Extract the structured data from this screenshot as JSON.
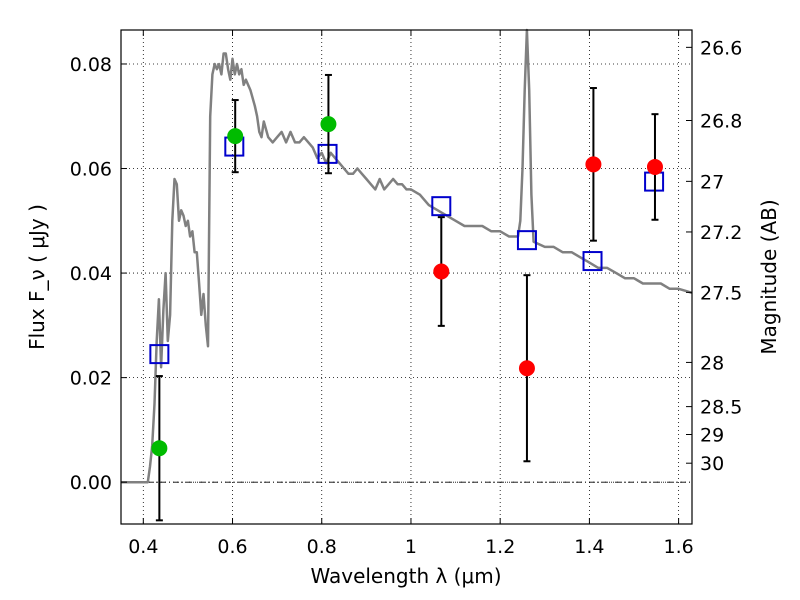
{
  "chart_data": {
    "type": "scatter",
    "xlabel": "Wavelength  λ (μm)",
    "ylabel": "Flux  F_ν  ( μJy )",
    "ylabel_right": "Magnitude (AB)",
    "xlim": [
      0.35,
      1.63
    ],
    "ylim": [
      -0.008,
      0.0865
    ],
    "x_ticks": [
      {
        "value": 0.4,
        "label": "0.4"
      },
      {
        "value": 0.6,
        "label": "0.6"
      },
      {
        "value": 0.8,
        "label": "0.8"
      },
      {
        "value": 1.0,
        "label": "1"
      },
      {
        "value": 1.2,
        "label": "1.2"
      },
      {
        "value": 1.4,
        "label": "1.4"
      },
      {
        "value": 1.6,
        "label": "1.6"
      }
    ],
    "y_ticks": [
      {
        "value": 0.0,
        "label": "0.00"
      },
      {
        "value": 0.02,
        "label": "0.02"
      },
      {
        "value": 0.04,
        "label": "0.04"
      },
      {
        "value": 0.06,
        "label": "0.06"
      },
      {
        "value": 0.08,
        "label": "0.08"
      }
    ],
    "magnitude_ticks": [
      {
        "value": 26.6,
        "label": "26.6"
      },
      {
        "value": 26.8,
        "label": "26.8"
      },
      {
        "value": 27.0,
        "label": "27"
      },
      {
        "value": 27.2,
        "label": "27.2"
      },
      {
        "value": 27.5,
        "label": "27.5"
      },
      {
        "value": 28.0,
        "label": "28"
      },
      {
        "value": 28.5,
        "label": "28.5"
      },
      {
        "value": 29.0,
        "label": "29"
      },
      {
        "value": 30.0,
        "label": "30"
      }
    ],
    "grid": true,
    "zero_line": true,
    "series": [
      {
        "marker": "line",
        "color": "#808080",
        "points": [
          [
            0.35,
            0.0
          ],
          [
            0.41,
            0.0
          ],
          [
            0.415,
            0.003
          ],
          [
            0.42,
            0.007
          ],
          [
            0.425,
            0.015
          ],
          [
            0.43,
            0.027
          ],
          [
            0.435,
            0.035
          ],
          [
            0.44,
            0.022
          ],
          [
            0.445,
            0.033
          ],
          [
            0.45,
            0.04
          ],
          [
            0.455,
            0.027
          ],
          [
            0.46,
            0.032
          ],
          [
            0.465,
            0.05
          ],
          [
            0.47,
            0.058
          ],
          [
            0.475,
            0.057
          ],
          [
            0.48,
            0.05
          ],
          [
            0.485,
            0.052
          ],
          [
            0.49,
            0.051
          ],
          [
            0.495,
            0.049
          ],
          [
            0.5,
            0.05
          ],
          [
            0.505,
            0.047
          ],
          [
            0.51,
            0.048
          ],
          [
            0.515,
            0.044
          ],
          [
            0.52,
            0.044
          ],
          [
            0.525,
            0.038
          ],
          [
            0.53,
            0.032
          ],
          [
            0.535,
            0.036
          ],
          [
            0.54,
            0.03
          ],
          [
            0.545,
            0.026
          ],
          [
            0.55,
            0.07
          ],
          [
            0.555,
            0.078
          ],
          [
            0.56,
            0.08
          ],
          [
            0.565,
            0.079
          ],
          [
            0.57,
            0.08
          ],
          [
            0.575,
            0.078
          ],
          [
            0.58,
            0.082
          ],
          [
            0.585,
            0.082
          ],
          [
            0.59,
            0.079
          ],
          [
            0.595,
            0.077
          ],
          [
            0.6,
            0.081
          ],
          [
            0.605,
            0.078
          ],
          [
            0.61,
            0.08
          ],
          [
            0.615,
            0.078
          ],
          [
            0.62,
            0.079
          ],
          [
            0.625,
            0.076
          ],
          [
            0.63,
            0.077
          ],
          [
            0.64,
            0.075
          ],
          [
            0.65,
            0.072
          ],
          [
            0.655,
            0.07
          ],
          [
            0.66,
            0.067
          ],
          [
            0.665,
            0.066
          ],
          [
            0.67,
            0.069
          ],
          [
            0.68,
            0.066
          ],
          [
            0.69,
            0.065
          ],
          [
            0.7,
            0.066
          ],
          [
            0.71,
            0.067
          ],
          [
            0.72,
            0.065
          ],
          [
            0.73,
            0.067
          ],
          [
            0.74,
            0.065
          ],
          [
            0.75,
            0.065
          ],
          [
            0.76,
            0.066
          ],
          [
            0.77,
            0.065
          ],
          [
            0.78,
            0.064
          ],
          [
            0.79,
            0.062
          ],
          [
            0.8,
            0.063
          ],
          [
            0.81,
            0.061
          ],
          [
            0.82,
            0.063
          ],
          [
            0.83,
            0.062
          ],
          [
            0.84,
            0.061
          ],
          [
            0.85,
            0.06
          ],
          [
            0.86,
            0.059
          ],
          [
            0.87,
            0.059
          ],
          [
            0.88,
            0.06
          ],
          [
            0.89,
            0.059
          ],
          [
            0.9,
            0.058
          ],
          [
            0.91,
            0.057
          ],
          [
            0.92,
            0.056
          ],
          [
            0.93,
            0.058
          ],
          [
            0.94,
            0.056
          ],
          [
            0.95,
            0.057
          ],
          [
            0.96,
            0.058
          ],
          [
            0.97,
            0.057
          ],
          [
            0.98,
            0.057
          ],
          [
            0.99,
            0.056
          ],
          [
            1.0,
            0.056
          ],
          [
            1.02,
            0.055
          ],
          [
            1.04,
            0.053
          ],
          [
            1.06,
            0.052
          ],
          [
            1.08,
            0.051
          ],
          [
            1.1,
            0.05
          ],
          [
            1.12,
            0.049
          ],
          [
            1.14,
            0.049
          ],
          [
            1.16,
            0.049
          ],
          [
            1.18,
            0.048
          ],
          [
            1.2,
            0.048
          ],
          [
            1.22,
            0.047
          ],
          [
            1.24,
            0.047
          ],
          [
            1.245,
            0.05
          ],
          [
            1.25,
            0.06
          ],
          [
            1.255,
            0.075
          ],
          [
            1.26,
            0.09
          ],
          [
            1.265,
            0.075
          ],
          [
            1.27,
            0.055
          ],
          [
            1.275,
            0.046
          ],
          [
            1.3,
            0.045
          ],
          [
            1.32,
            0.045
          ],
          [
            1.34,
            0.044
          ],
          [
            1.36,
            0.044
          ],
          [
            1.38,
            0.043
          ],
          [
            1.4,
            0.042
          ],
          [
            1.42,
            0.041
          ],
          [
            1.44,
            0.041
          ],
          [
            1.46,
            0.04
          ],
          [
            1.48,
            0.039
          ],
          [
            1.5,
            0.039
          ],
          [
            1.52,
            0.038
          ],
          [
            1.54,
            0.038
          ],
          [
            1.56,
            0.038
          ],
          [
            1.58,
            0.037
          ],
          [
            1.6,
            0.037
          ],
          [
            1.62,
            0.0365
          ],
          [
            1.63,
            0.0362
          ]
        ]
      },
      {
        "marker": "open-square",
        "color": "#0000cc",
        "points": [
          [
            0.436,
            0.0245
          ],
          [
            0.604,
            0.0642
          ],
          [
            0.813,
            0.0628
          ],
          [
            1.068,
            0.0528
          ],
          [
            1.26,
            0.0463
          ],
          [
            1.407,
            0.0423
          ],
          [
            1.545,
            0.0575
          ]
        ]
      },
      {
        "marker": "circle",
        "color": "#00bb00",
        "points": [
          [
            0.436,
            0.0065,
            0.0138
          ],
          [
            0.606,
            0.0662,
            0.0069
          ],
          [
            0.815,
            0.0685,
            0.0094
          ]
        ]
      },
      {
        "marker": "circle",
        "color": "#ff0000",
        "points": [
          [
            1.068,
            0.0403,
            0.0104
          ],
          [
            1.26,
            0.0218,
            0.0178
          ],
          [
            1.409,
            0.0608,
            0.0146
          ],
          [
            1.547,
            0.0603,
            0.0101
          ]
        ]
      }
    ]
  }
}
